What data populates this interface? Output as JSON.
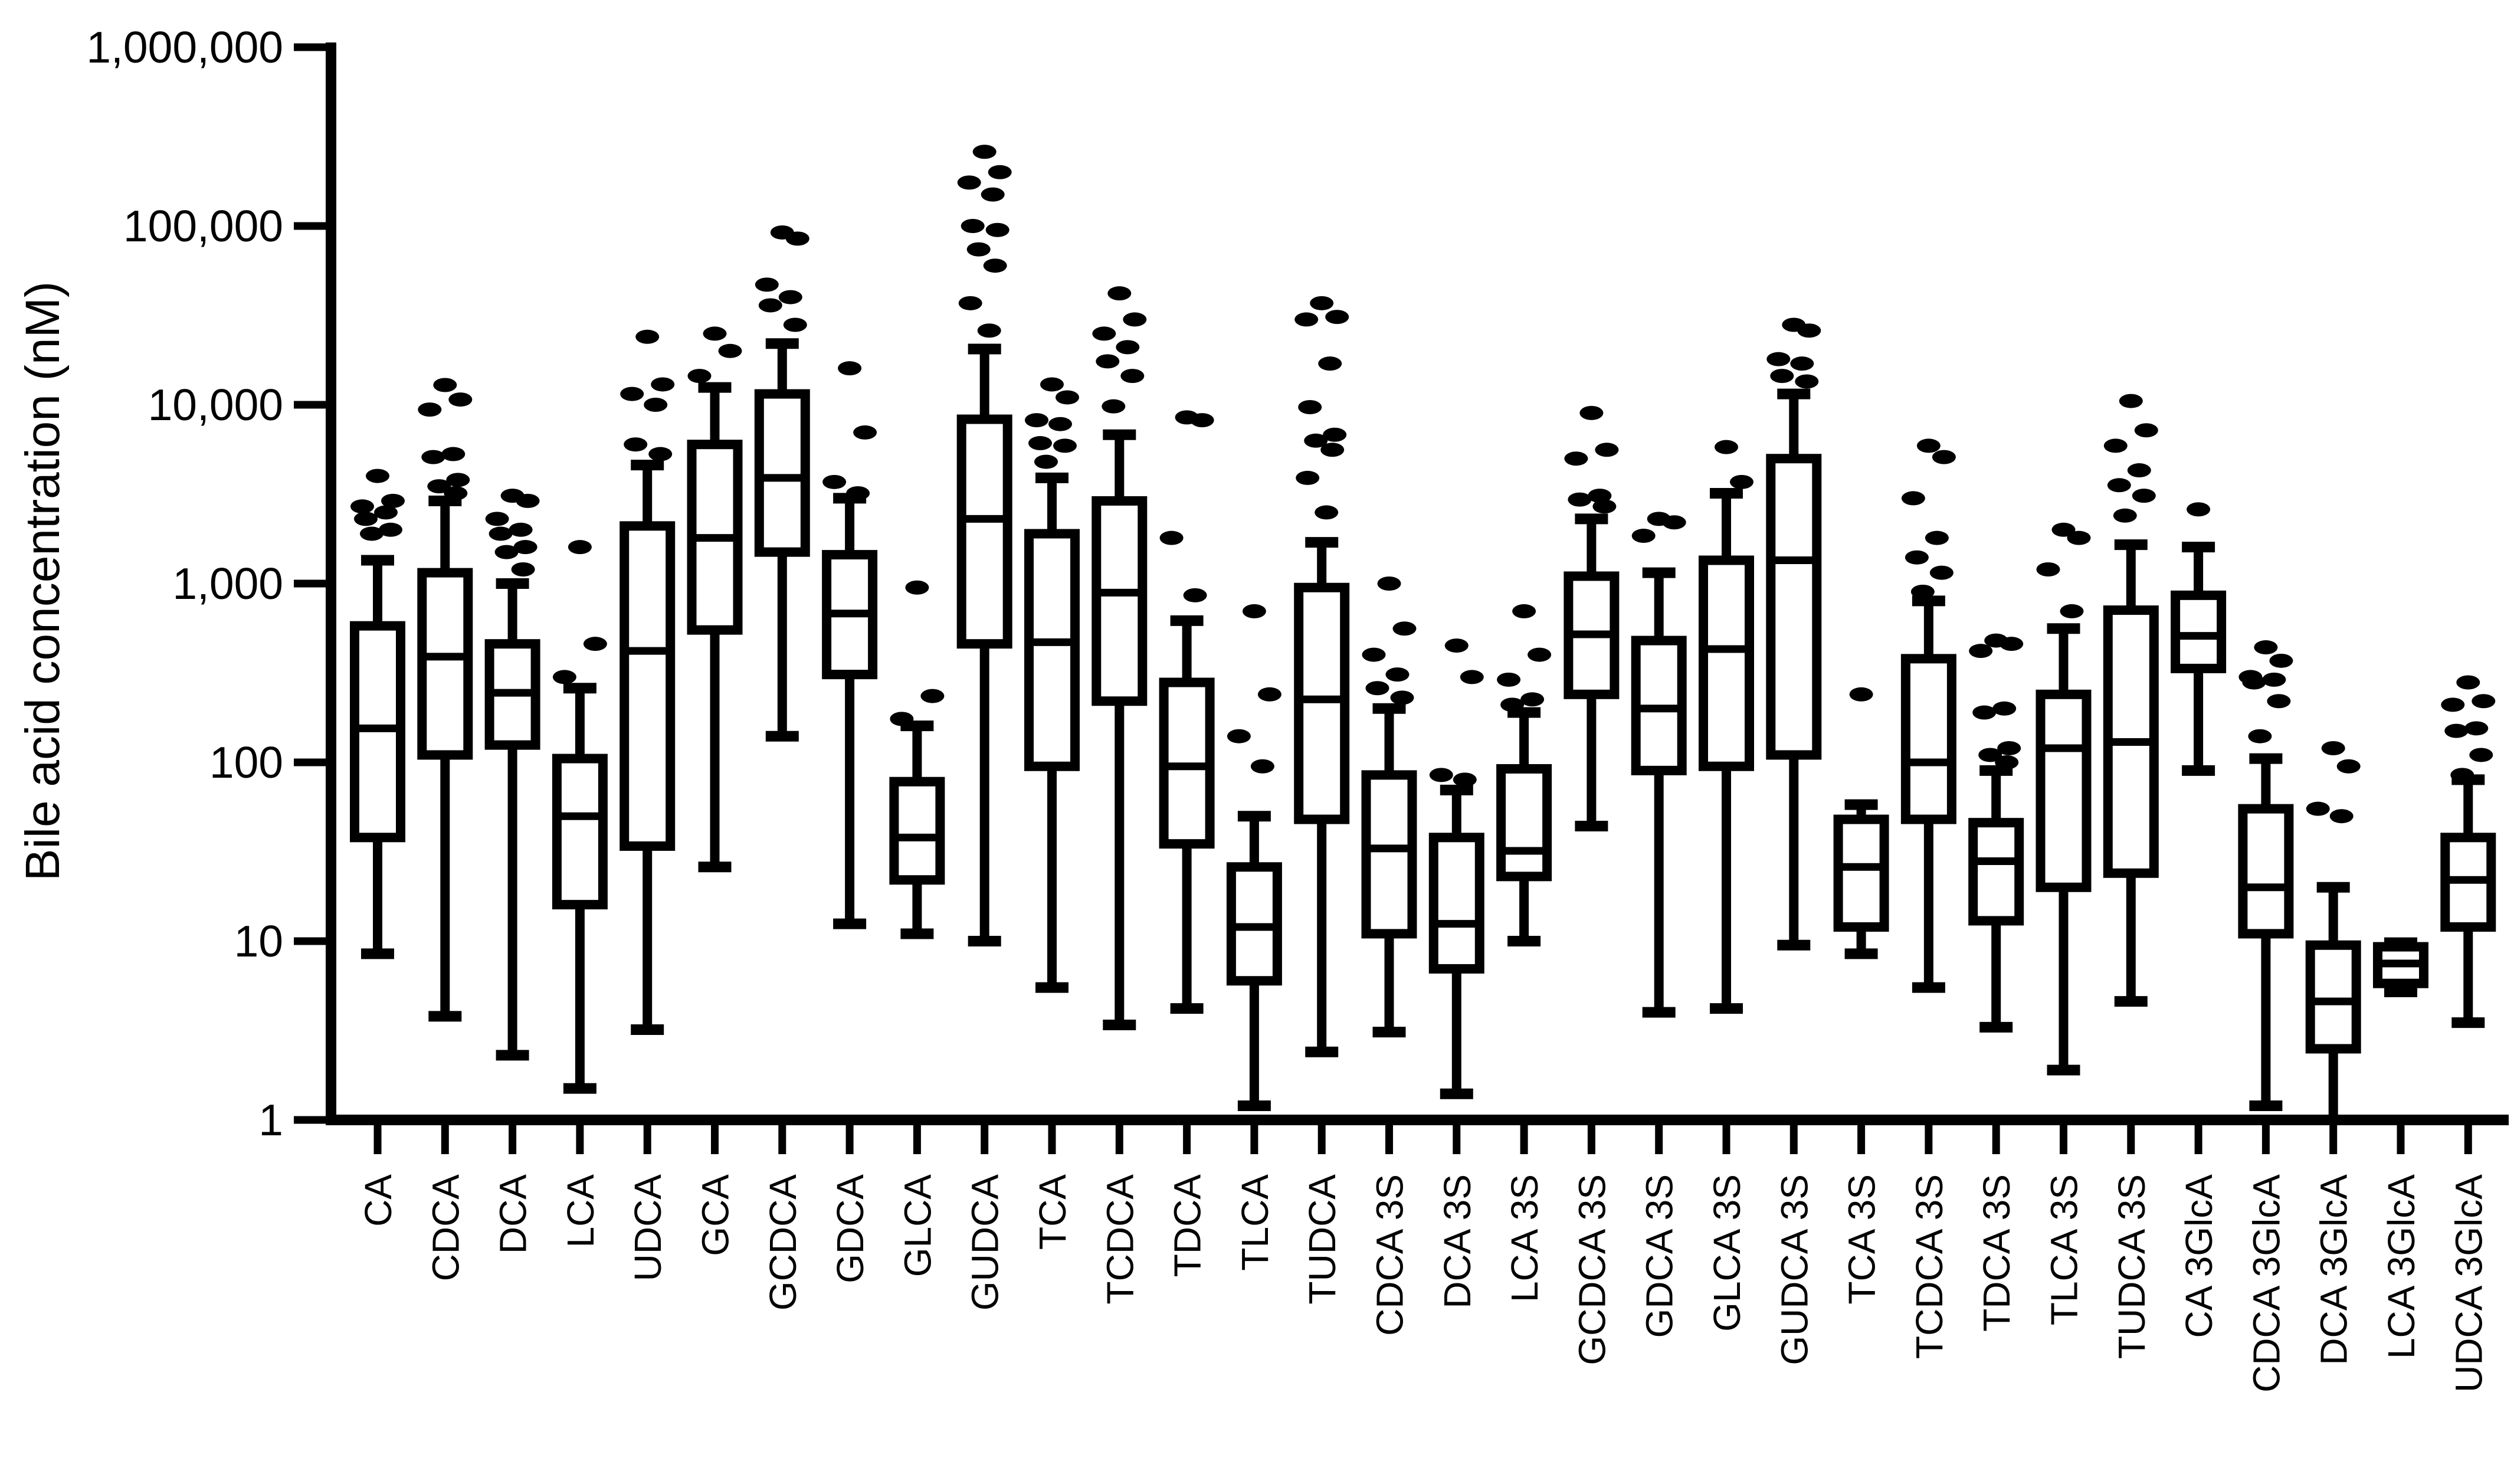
{
  "colors": {
    "ink": "#000000",
    "background": "#ffffff"
  },
  "chart_data": {
    "type": "box",
    "title": "",
    "xlabel": "",
    "ylabel": "Bile acid concentration (nM)",
    "yscale": "log",
    "ylim": [
      1,
      1000000
    ],
    "grid": false,
    "legend": "none",
    "y_ticks": [
      {
        "value": 1,
        "label": "1"
      },
      {
        "value": 10,
        "label": "10"
      },
      {
        "value": 100,
        "label": "100"
      },
      {
        "value": 1000,
        "label": "1,000"
      },
      {
        "value": 10000,
        "label": "10,000"
      },
      {
        "value": 100000,
        "label": "100,000"
      },
      {
        "value": 1000000,
        "label": "1,000,000"
      }
    ],
    "categories": [
      "CA",
      "CDCA",
      "DCA",
      "LCA",
      "UDCA",
      "GCA",
      "GCDCA",
      "GDCA",
      "GLCA",
      "GUDCA",
      "TCA",
      "TCDCA",
      "TDCA",
      "TLCA",
      "TUDCA",
      "CDCA 3S",
      "DCA 3S",
      "LCA 3S",
      "GCDCA 3S",
      "GDCA 3S",
      "GLCA 3S",
      "GUDCA 3S",
      "TCA 3S",
      "TCDCA 3S",
      "TDCA 3S",
      "TLCA 3S",
      "TUDCA 3S",
      "CA 3GlcA",
      "CDCA 3GlcA",
      "DCA 3GlcA",
      "LCA 3GlcA",
      "UDCA 3GlcA"
    ],
    "series": [
      {
        "name": "CA",
        "whisker_low": 8.5,
        "q1": 38,
        "median": 155,
        "q3": 580,
        "whisker_high": 1350,
        "outliers": [
          4000,
          2900,
          2700,
          2500,
          2300,
          2000,
          1900
        ]
      },
      {
        "name": "CDCA",
        "whisker_low": 3.8,
        "q1": 110,
        "median": 390,
        "q3": 1150,
        "whisker_high": 2900,
        "outliers": [
          12900,
          10700,
          9400,
          5300,
          5100,
          3800,
          3500,
          3200
        ]
      },
      {
        "name": "DCA",
        "whisker_low": 2.3,
        "q1": 125,
        "median": 245,
        "q3": 460,
        "whisker_high": 1000,
        "outliers": [
          3100,
          2900,
          2300,
          2000,
          1900,
          1600,
          1500,
          1200
        ]
      },
      {
        "name": "LCA",
        "whisker_low": 1.5,
        "q1": 16,
        "median": 50,
        "q3": 105,
        "whisker_high": 260,
        "outliers": [
          1600,
          460,
          300
        ]
      },
      {
        "name": "UDCA",
        "whisker_low": 3.2,
        "q1": 34,
        "median": 420,
        "q3": 2100,
        "whisker_high": 4600,
        "outliers": [
          24000,
          13000,
          11500,
          10000,
          6000,
          5300
        ]
      },
      {
        "name": "GCA",
        "whisker_low": 26,
        "q1": 550,
        "median": 1800,
        "q3": 6000,
        "whisker_high": 12500,
        "outliers": [
          25000,
          20000,
          14500
        ]
      },
      {
        "name": "GCDCA",
        "whisker_low": 140,
        "q1": 1500,
        "median": 3900,
        "q3": 11500,
        "whisker_high": 22000,
        "outliers": [
          92000,
          85000,
          47000,
          40000,
          36000,
          28000
        ]
      },
      {
        "name": "GDCA",
        "whisker_low": 12.5,
        "q1": 310,
        "median": 680,
        "q3": 1450,
        "whisker_high": 3000,
        "outliers": [
          16000,
          7000,
          3700,
          3200
        ]
      },
      {
        "name": "GLCA",
        "whisker_low": 11,
        "q1": 22,
        "median": 38,
        "q3": 78,
        "whisker_high": 160,
        "outliers": [
          950,
          235,
          175
        ]
      },
      {
        "name": "GUDCA",
        "whisker_low": 10,
        "q1": 460,
        "median": 2300,
        "q3": 8300,
        "whisker_high": 20500,
        "outliers": [
          260000,
          200000,
          175000,
          150000,
          100000,
          95000,
          74000,
          60000,
          37000,
          26000
        ]
      },
      {
        "name": "TCA",
        "whisker_low": 5.5,
        "q1": 95,
        "median": 470,
        "q3": 1900,
        "whisker_high": 3900,
        "outliers": [
          13000,
          11000,
          8200,
          7800,
          6100,
          5900,
          4800
        ]
      },
      {
        "name": "TCDCA",
        "whisker_low": 3.4,
        "q1": 220,
        "median": 890,
        "q3": 2900,
        "whisker_high": 6800,
        "outliers": [
          42000,
          30000,
          25000,
          21000,
          17500,
          14500,
          9800
        ]
      },
      {
        "name": "TDCA",
        "whisker_low": 4.2,
        "q1": 35,
        "median": 95,
        "q3": 280,
        "whisker_high": 620,
        "outliers": [
          8500,
          8200,
          1800,
          860
        ]
      },
      {
        "name": "TLCA",
        "whisker_low": 1.2,
        "q1": 6,
        "median": 12,
        "q3": 26,
        "whisker_high": 50,
        "outliers": [
          700,
          240,
          140,
          95
        ]
      },
      {
        "name": "TUDCA",
        "whisker_low": 2.4,
        "q1": 48,
        "median": 225,
        "q3": 950,
        "whisker_high": 1700,
        "outliers": [
          37000,
          31000,
          30000,
          17000,
          9700,
          6800,
          6300,
          5600,
          3900,
          2500
        ]
      },
      {
        "name": "CDCA 3S",
        "whisker_low": 3.1,
        "q1": 11,
        "median": 33,
        "q3": 85,
        "whisker_high": 200,
        "outliers": [
          1000,
          560,
          400,
          310,
          260,
          230
        ]
      },
      {
        "name": "DCA 3S",
        "whisker_low": 1.4,
        "q1": 7,
        "median": 12.5,
        "q3": 38,
        "whisker_high": 70,
        "outliers": [
          450,
          300,
          85,
          80
        ]
      },
      {
        "name": "LCA 3S",
        "whisker_low": 10,
        "q1": 23,
        "median": 32,
        "q3": 92,
        "whisker_high": 190,
        "outliers": [
          700,
          400,
          290,
          225,
          210
        ]
      },
      {
        "name": "GCDCA 3S",
        "whisker_low": 44,
        "q1": 240,
        "median": 520,
        "q3": 1100,
        "whisker_high": 2300,
        "outliers": [
          9000,
          5600,
          5000,
          3100,
          2950,
          2700
        ]
      },
      {
        "name": "GDCA 3S",
        "whisker_low": 4,
        "q1": 90,
        "median": 200,
        "q3": 480,
        "whisker_high": 1150,
        "outliers": [
          2300,
          2200,
          1850
        ]
      },
      {
        "name": "GLCA 3S",
        "whisker_low": 4.2,
        "q1": 95,
        "median": 430,
        "q3": 1350,
        "whisker_high": 3200,
        "outliers": [
          5800,
          3700
        ]
      },
      {
        "name": "GUDCA 3S",
        "whisker_low": 9.5,
        "q1": 110,
        "median": 1350,
        "q3": 5000,
        "whisker_high": 11500,
        "outliers": [
          28000,
          26000,
          18000,
          17000,
          14500,
          13500
        ]
      },
      {
        "name": "TCA 3S",
        "whisker_low": 8.5,
        "q1": 12,
        "median": 26,
        "q3": 48,
        "whisker_high": 58,
        "outliers": [
          240
        ]
      },
      {
        "name": "TCDCA 3S",
        "whisker_low": 5.5,
        "q1": 48,
        "median": 100,
        "q3": 380,
        "whisker_high": 800,
        "outliers": [
          5900,
          5100,
          3000,
          1800,
          1400,
          1150,
          900
        ]
      },
      {
        "name": "TDCA 3S",
        "whisker_low": 3.3,
        "q1": 13,
        "median": 28,
        "q3": 46,
        "whisker_high": 90,
        "outliers": [
          480,
          460,
          420,
          200,
          190,
          120,
          110,
          100
        ]
      },
      {
        "name": "TLCA 3S",
        "whisker_low": 1.9,
        "q1": 20,
        "median": 120,
        "q3": 240,
        "whisker_high": 560,
        "outliers": [
          2000,
          1800,
          1200,
          700
        ]
      },
      {
        "name": "TUDCA 3S",
        "whisker_low": 4.6,
        "q1": 24,
        "median": 130,
        "q3": 710,
        "whisker_high": 1650,
        "outliers": [
          10500,
          7200,
          5900,
          4300,
          3550,
          3100,
          2400
        ]
      },
      {
        "name": "CA 3GlcA",
        "whisker_low": 90,
        "q1": 335,
        "median": 510,
        "q3": 860,
        "whisker_high": 1600,
        "outliers": [
          2600
        ]
      },
      {
        "name": "CDCA 3GlcA",
        "whisker_low": 1.2,
        "q1": 11,
        "median": 20,
        "q3": 55,
        "whisker_high": 105,
        "outliers": [
          440,
          370,
          300,
          290,
          280,
          220,
          140
        ]
      },
      {
        "name": "DCA 3GlcA",
        "whisker_low": 1.0,
        "q1": 2.5,
        "median": 4.6,
        "q3": 9.5,
        "whisker_high": 20,
        "outliers": [
          120,
          95,
          55,
          50
        ]
      },
      {
        "name": "LCA 3GlcA",
        "whisker_low": 5.2,
        "q1": 5.8,
        "median": 7.5,
        "q3": 9.3,
        "whisker_high": 9.8,
        "outliers": []
      },
      {
        "name": "UDCA 3GlcA",
        "whisker_low": 3.5,
        "q1": 12,
        "median": 22,
        "q3": 38,
        "whisker_high": 80,
        "outliers": [
          280,
          220,
          210,
          155,
          150,
          110,
          85
        ]
      }
    ]
  }
}
